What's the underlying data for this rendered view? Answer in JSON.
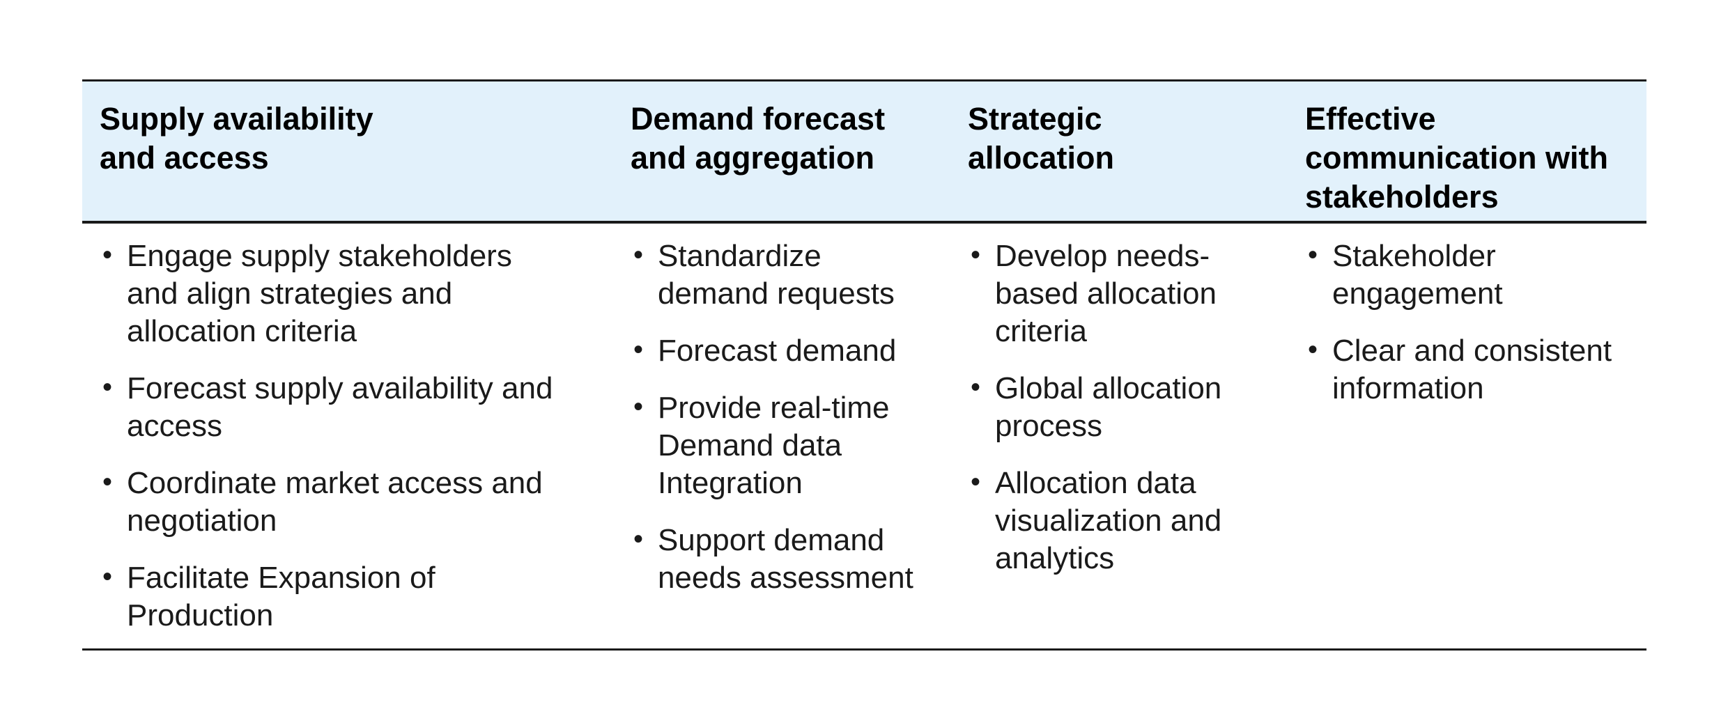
{
  "table": {
    "header_bg_color": "#e2f1fb",
    "border_color": "#1a1a1a",
    "columns": [
      {
        "header": "Supply availability\nand access",
        "items": [
          "Engage supply stakeholders\nand align strategies and\nallocation criteria",
          "Forecast supply availability and\naccess",
          "Coordinate market access and\nnegotiation",
          "Facilitate Expansion of\nProduction"
        ]
      },
      {
        "header": "Demand forecast\nand aggregation",
        "items": [
          "Standardize\ndemand requests",
          "Forecast demand",
          "Provide real-time\nDemand data\nIntegration",
          "Support demand\nneeds assessment"
        ]
      },
      {
        "header": "Strategic\nallocation",
        "items": [
          "Develop needs-\nbased allocation\ncriteria",
          "Global allocation\nprocess",
          "Allocation data\nvisualization and\nanalytics"
        ]
      },
      {
        "header": "Effective\ncommunication with\nstakeholders",
        "items": [
          "Stakeholder\nengagement",
          "Clear and consistent\ninformation"
        ]
      }
    ]
  }
}
